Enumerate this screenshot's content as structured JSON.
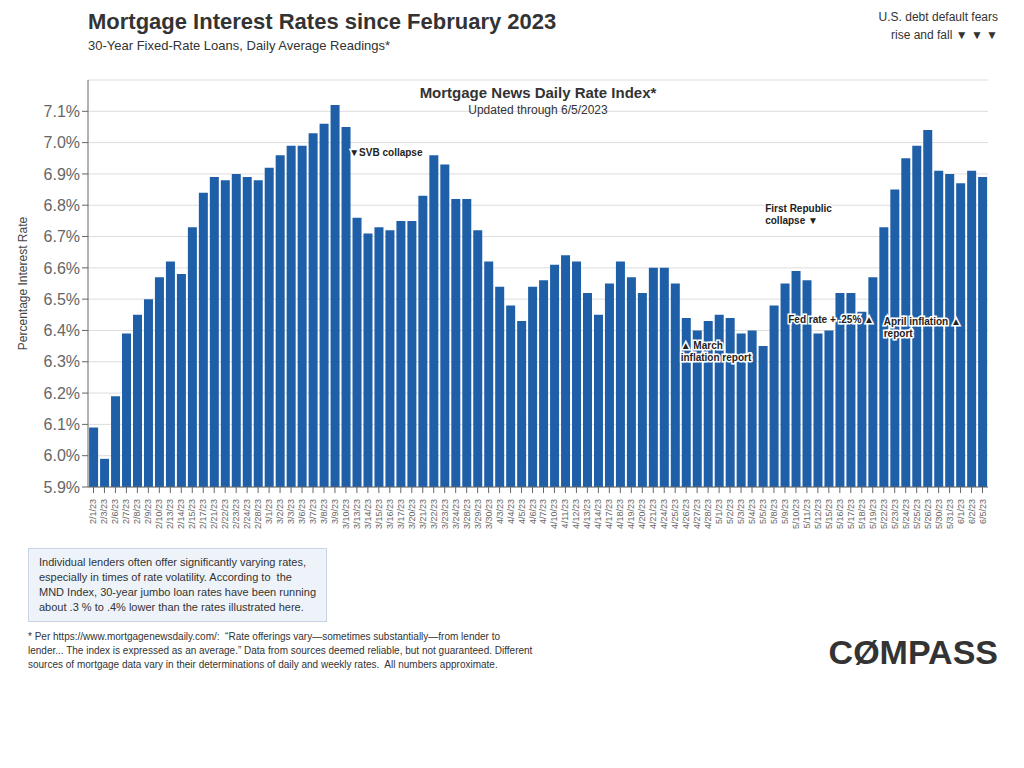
{
  "chart_data": {
    "type": "bar",
    "title": "Mortgage Interest Rates since February 2023",
    "subtitle": "30-Year Fixed-Rate Loans, Daily Average Readings*",
    "index_label": "Mortgage News Daily Rate Index*",
    "updated_label": "Updated through 6/5/2023",
    "ylabel": "Percentage Interest  Rate",
    "categories": [
      "2/1/23",
      "2/3/23",
      "2/6/23",
      "2/7/23",
      "2/8/23",
      "2/9/23",
      "2/10/23",
      "2/13/23",
      "2/14/23",
      "2/15/23",
      "2/17/23",
      "2/21/23",
      "2/22/23",
      "2/23/23",
      "2/24/23",
      "2/28/23",
      "3/1/23",
      "3/2/23",
      "3/3/23",
      "3/6/23",
      "3/7/23",
      "3/8/23",
      "3/9/23",
      "3/10/23",
      "3/13/23",
      "3/14/23",
      "3/15/23",
      "3/16/23",
      "3/17/23",
      "3/20/23",
      "3/21/23",
      "3/22/23",
      "3/23/23",
      "3/24/23",
      "3/28/23",
      "3/29/23",
      "3/30/23",
      "4/3/23",
      "4/4/23",
      "4/5/23",
      "4/6/23",
      "4/7/23",
      "4/10/23",
      "4/11/23",
      "4/12/23",
      "4/13/23",
      "4/14/23",
      "4/17/23",
      "4/18/23",
      "4/19/23",
      "4/20/23",
      "4/21/23",
      "4/24/23",
      "4/25/23",
      "4/26/23",
      "4/27/23",
      "4/28/23",
      "5/1/23",
      "5/2/23",
      "5/3/23",
      "5/4/23",
      "5/5/23",
      "5/8/23",
      "5/9/23",
      "5/10/23",
      "5/11/23",
      "5/12/23",
      "5/15/23",
      "5/16/23",
      "5/17/23",
      "5/18/23",
      "5/19/23",
      "5/22/23",
      "5/23/23",
      "5/24/23",
      "5/25/23",
      "5/26/23",
      "5/30/23",
      "5/31/23",
      "6/1/23",
      "6/2/23",
      "6/5/23"
    ],
    "values": [
      6.09,
      5.99,
      6.19,
      6.39,
      6.45,
      6.5,
      6.57,
      6.62,
      6.58,
      6.73,
      6.84,
      6.89,
      6.88,
      6.9,
      6.89,
      6.88,
      6.92,
      6.96,
      6.99,
      6.99,
      7.03,
      7.06,
      7.12,
      7.05,
      6.76,
      6.71,
      6.73,
      6.72,
      6.75,
      6.75,
      6.83,
      6.96,
      6.93,
      6.82,
      6.82,
      6.72,
      6.62,
      6.54,
      6.48,
      6.43,
      6.54,
      6.56,
      6.61,
      6.64,
      6.62,
      6.52,
      6.45,
      6.55,
      6.62,
      6.57,
      6.52,
      6.6,
      6.6,
      6.55,
      6.44,
      6.4,
      6.43,
      6.45,
      6.44,
      6.39,
      6.4,
      6.35,
      6.48,
      6.55,
      6.59,
      6.56,
      6.39,
      6.4,
      6.52,
      6.52,
      6.46,
      6.57,
      6.73,
      6.85,
      6.95,
      6.99,
      7.04,
      6.91,
      6.9,
      6.87,
      6.91,
      6.89
    ],
    "color": "#1e5fa8",
    "ylim": [
      5.9,
      7.2
    ],
    "yticks": [
      {
        "value": 5.9,
        "label": "5.9%"
      },
      {
        "value": 6.0,
        "label": "6.0%"
      },
      {
        "value": 6.1,
        "label": "6.1%"
      },
      {
        "value": 6.2,
        "label": "6.2%"
      },
      {
        "value": 6.3,
        "label": "6.3%"
      },
      {
        "value": 6.4,
        "label": "6.4%"
      },
      {
        "value": 6.5,
        "label": "6.5%"
      },
      {
        "value": 6.6,
        "label": "6.6%"
      },
      {
        "value": 6.7,
        "label": "6.7%"
      },
      {
        "value": 6.8,
        "label": "6.8%"
      },
      {
        "value": 6.9,
        "label": "6.9%"
      },
      {
        "value": 7.0,
        "label": "7.0%"
      },
      {
        "value": 7.1,
        "label": "7.1%"
      }
    ],
    "grid": true,
    "annotations": [
      {
        "text": "▼SVB collapse",
        "x": "3/10/23",
        "y": 6.97
      },
      {
        "text": "First Republic\ncollapse ▼",
        "x": "5/4/23",
        "y": 6.81
      },
      {
        "text": "▲ March\ninflation report",
        "x": "4/27/23",
        "y": 6.295
      },
      {
        "text": "Fed rate + .25% ▲",
        "x": "5/9/23",
        "y": 6.415
      },
      {
        "text": "April inflation ▲\nreport",
        "x": "5/16/23",
        "y": 6.37
      }
    ],
    "inset_text": [
      "Individual lenders often offer significantly varying rates,",
      "especially in times of rate volatility. According to  the",
      "MND Index, 30-year jumbo loan rates have been running",
      "about .3 % to .4% lower than the rates illustrated here."
    ],
    "debt_default_text": "U.S. debt default fears\nrise and fall ▼ ▼ ▼",
    "footnote": [
      "* Per https://www.mortgagenewsdaily.com/:  “Rate offerings vary—sometimes substantially—from lender to",
      "lender... The index is expressed as an average.” Data from sources deemed reliable, but not guaranteed. Different",
      "sources of mortgage data vary in their determinations of daily and weekly rates.  All numbers approximate."
    ],
    "logo": "CØMPASS"
  }
}
